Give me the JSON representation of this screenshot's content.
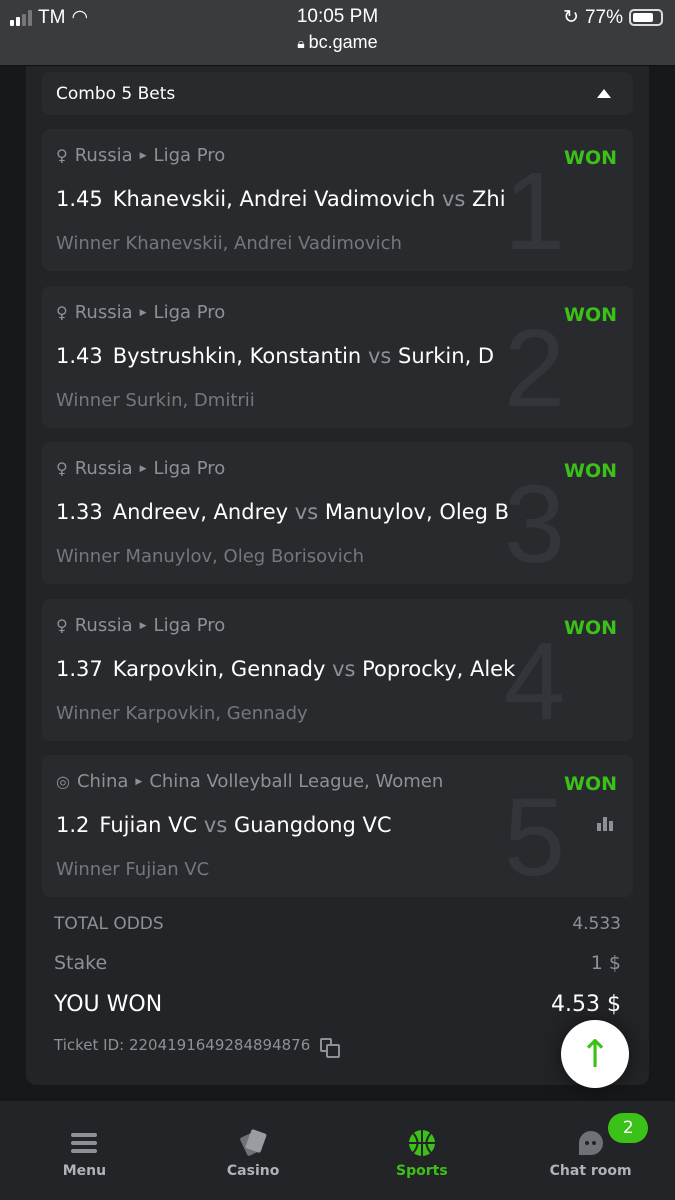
{
  "status_bar": {
    "carrier": "TM",
    "time": "10:05 PM",
    "url": "bc.game",
    "battery": "77%"
  },
  "combo": {
    "title": "Combo 5 Bets"
  },
  "bets": [
    {
      "num": "1",
      "country": "Russia",
      "league": "Liga Pro",
      "sport_icon": "table-tennis-icon",
      "status": "WON",
      "odds": "1.45",
      "home": "Khanevskii, Andrei Vadimovich",
      "vs": "vs",
      "away": "Zhi",
      "winner": "Winner Khanevskii, Andrei Vadimovich"
    },
    {
      "num": "2",
      "country": "Russia",
      "league": "Liga Pro",
      "sport_icon": "table-tennis-icon",
      "status": "WON",
      "odds": "1.43",
      "home": "Bystrushkin, Konstantin",
      "vs": "vs",
      "away": "Surkin, D",
      "winner": "Winner Surkin, Dmitrii"
    },
    {
      "num": "3",
      "country": "Russia",
      "league": "Liga Pro",
      "sport_icon": "table-tennis-icon",
      "status": "WON",
      "odds": "1.33",
      "home": "Andreev, Andrey",
      "vs": "vs",
      "away": "Manuylov, Oleg B",
      "winner": "Winner Manuylov, Oleg Borisovich"
    },
    {
      "num": "4",
      "country": "Russia",
      "league": "Liga Pro",
      "sport_icon": "table-tennis-icon",
      "status": "WON",
      "odds": "1.37",
      "home": "Karpovkin, Gennady",
      "vs": "vs",
      "away": "Poprocky, Alek",
      "winner": "Winner Karpovkin, Gennady"
    },
    {
      "num": "5",
      "country": "China",
      "league": "China Volleyball League, Women",
      "sport_icon": "volleyball-icon",
      "status": "WON",
      "odds": "1.2",
      "home": "Fujian VC",
      "vs": "vs",
      "away": "Guangdong VC",
      "winner": "Winner Fujian VC"
    }
  ],
  "summary": {
    "total_odds_label": "TOTAL ODDS",
    "total_odds": "4.533",
    "stake_label": "Stake",
    "stake": "1 $",
    "won_label": "YOU WON",
    "won": "4.53 $",
    "ticket": "Ticket ID: 2204191649284894876"
  },
  "nav": {
    "badge": "2",
    "items": [
      {
        "label": "Menu"
      },
      {
        "label": "Casino"
      },
      {
        "label": "Sports"
      },
      {
        "label": "Chat room"
      }
    ]
  },
  "colors": {
    "accent": "#3bc117",
    "background": "#17181b",
    "panel": "#232427"
  }
}
